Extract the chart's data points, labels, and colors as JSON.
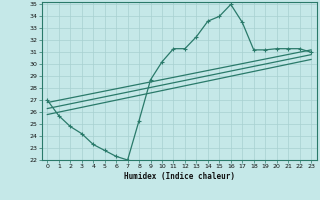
{
  "xlabel": "Humidex (Indice chaleur)",
  "bg_color": "#c5e8e8",
  "grid_color": "#a8d0d0",
  "line_color": "#2a7a6a",
  "xlim": [
    -0.5,
    23.5
  ],
  "ylim": [
    22,
    35.2
  ],
  "xticks": [
    0,
    1,
    2,
    3,
    4,
    5,
    6,
    7,
    8,
    9,
    10,
    11,
    12,
    13,
    14,
    15,
    16,
    17,
    18,
    19,
    20,
    21,
    22,
    23
  ],
  "yticks": [
    22,
    23,
    24,
    25,
    26,
    27,
    28,
    29,
    30,
    31,
    32,
    33,
    34,
    35
  ],
  "series1_x": [
    0,
    1,
    2,
    3,
    4,
    5,
    6,
    7,
    8,
    9,
    10,
    11,
    12,
    13,
    14,
    15,
    16,
    17,
    18,
    19,
    20,
    21,
    22,
    23
  ],
  "series1_y": [
    27.0,
    25.7,
    24.8,
    24.2,
    23.3,
    22.8,
    22.3,
    22.0,
    25.3,
    28.7,
    30.2,
    31.3,
    31.3,
    32.3,
    33.6,
    34.0,
    35.0,
    33.5,
    31.2,
    31.2,
    31.3,
    31.3,
    31.3,
    31.0
  ],
  "series2_x": [
    0,
    23
  ],
  "series2_y": [
    26.8,
    31.2
  ],
  "series3_x": [
    0,
    23
  ],
  "series3_y": [
    26.3,
    30.8
  ],
  "series4_x": [
    0,
    23
  ],
  "series4_y": [
    25.8,
    30.4
  ]
}
